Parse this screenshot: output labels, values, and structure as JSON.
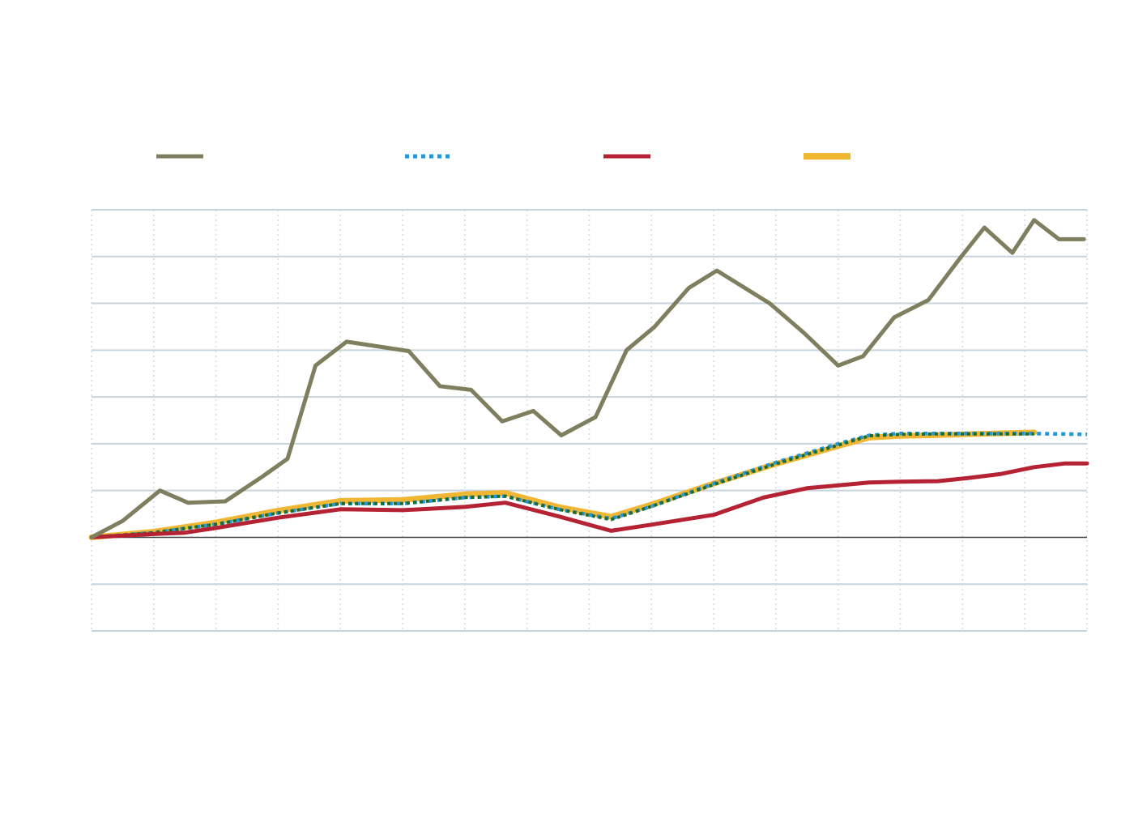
{
  "chart_data": {
    "type": "line",
    "title": "",
    "xlabel": "",
    "ylabel": "",
    "ylim": [
      -2,
      7
    ],
    "xlim": [
      0,
      32
    ],
    "zero_line": true,
    "grid": true,
    "legend_placement": "top",
    "series": [
      {
        "name": "",
        "color": "#7f7f5f",
        "style": "solid",
        "x": [
          0,
          1,
          2.2,
          3.1,
          4.3,
          5.5,
          6.3,
          7.2,
          8.2,
          10.2,
          11.2,
          12.2,
          13.2,
          14.2,
          15.1,
          16.2,
          17.2,
          18.1,
          19.2,
          20.1,
          21.8,
          22.9,
          24.0,
          24.8,
          25.8,
          26.9,
          27.9,
          28.7,
          29.6,
          30.3,
          31.1,
          31.9
        ],
        "values": [
          0,
          0.35,
          1.0,
          0.74,
          0.77,
          1.3,
          1.68,
          3.67,
          4.18,
          3.98,
          3.23,
          3.15,
          2.48,
          2.7,
          2.18,
          2.57,
          4.0,
          4.5,
          5.33,
          5.7,
          5.0,
          4.37,
          3.67,
          3.87,
          4.7,
          5.07,
          5.95,
          6.62,
          6.08,
          6.78,
          6.37,
          6.37
        ]
      },
      {
        "name": "",
        "color": "#2b96d6",
        "style": "dotted",
        "x": [
          0,
          2,
          4,
          6,
          8,
          10,
          12,
          13.3,
          15,
          16.7,
          18,
          20,
          22,
          24,
          25,
          26,
          27,
          28,
          30,
          32
        ],
        "values": [
          0,
          0.1,
          0.28,
          0.52,
          0.72,
          0.72,
          0.85,
          0.88,
          0.6,
          0.4,
          0.66,
          1.15,
          1.6,
          2.0,
          2.18,
          2.22,
          2.22,
          2.22,
          2.22,
          2.2
        ]
      },
      {
        "name": "",
        "color": "#b52233",
        "style": "solid",
        "x": [
          0,
          2,
          3,
          4,
          6,
          8,
          10,
          12,
          13.3,
          15,
          16.7,
          18,
          20,
          21.6,
          23,
          25,
          26,
          27.2,
          28.2,
          29.2,
          30.3,
          31.3,
          32
        ],
        "values": [
          0,
          0.07,
          0.1,
          0.2,
          0.42,
          0.6,
          0.58,
          0.65,
          0.74,
          0.45,
          0.14,
          0.27,
          0.48,
          0.85,
          1.05,
          1.17,
          1.19,
          1.2,
          1.27,
          1.35,
          1.5,
          1.58,
          1.58
        ]
      },
      {
        "name": "",
        "color": "#f2b732",
        "style": "solid-wide",
        "x": [
          0,
          2,
          4,
          6,
          8,
          10,
          12,
          13.3,
          15,
          16.7,
          18,
          20,
          22,
          24,
          25,
          26,
          27,
          28,
          30.3
        ],
        "values": [
          0,
          0.12,
          0.32,
          0.57,
          0.78,
          0.8,
          0.92,
          0.95,
          0.65,
          0.44,
          0.7,
          1.15,
          1.57,
          1.95,
          2.13,
          2.17,
          2.18,
          2.2,
          2.24
        ]
      },
      {
        "name": "",
        "color": "#1e6b2b",
        "style": "dotted-overlay",
        "x": [
          0,
          2,
          4,
          6,
          8,
          10,
          12,
          13.3,
          15,
          16.7,
          18,
          20,
          22,
          24,
          25,
          26,
          27,
          28,
          30.3
        ],
        "values": [
          0,
          0.1,
          0.28,
          0.52,
          0.72,
          0.72,
          0.85,
          0.88,
          0.6,
          0.38,
          0.66,
          1.13,
          1.57,
          1.97,
          2.17,
          2.2,
          2.21,
          2.21,
          2.21
        ]
      }
    ],
    "legend": [
      {
        "label": "",
        "color": "#7f7f5f",
        "style": "solid"
      },
      {
        "label": "",
        "color": "#2b96d6",
        "style": "dotted"
      },
      {
        "label": "",
        "color": "#b52233",
        "style": "solid"
      },
      {
        "label": "",
        "color": "#f2b732",
        "style": "solid-wide"
      }
    ],
    "colors": {
      "grid": "#c7d4dd",
      "vgrid": "#cfdbe3",
      "zero": "#444444",
      "background": "#ffffff"
    }
  }
}
